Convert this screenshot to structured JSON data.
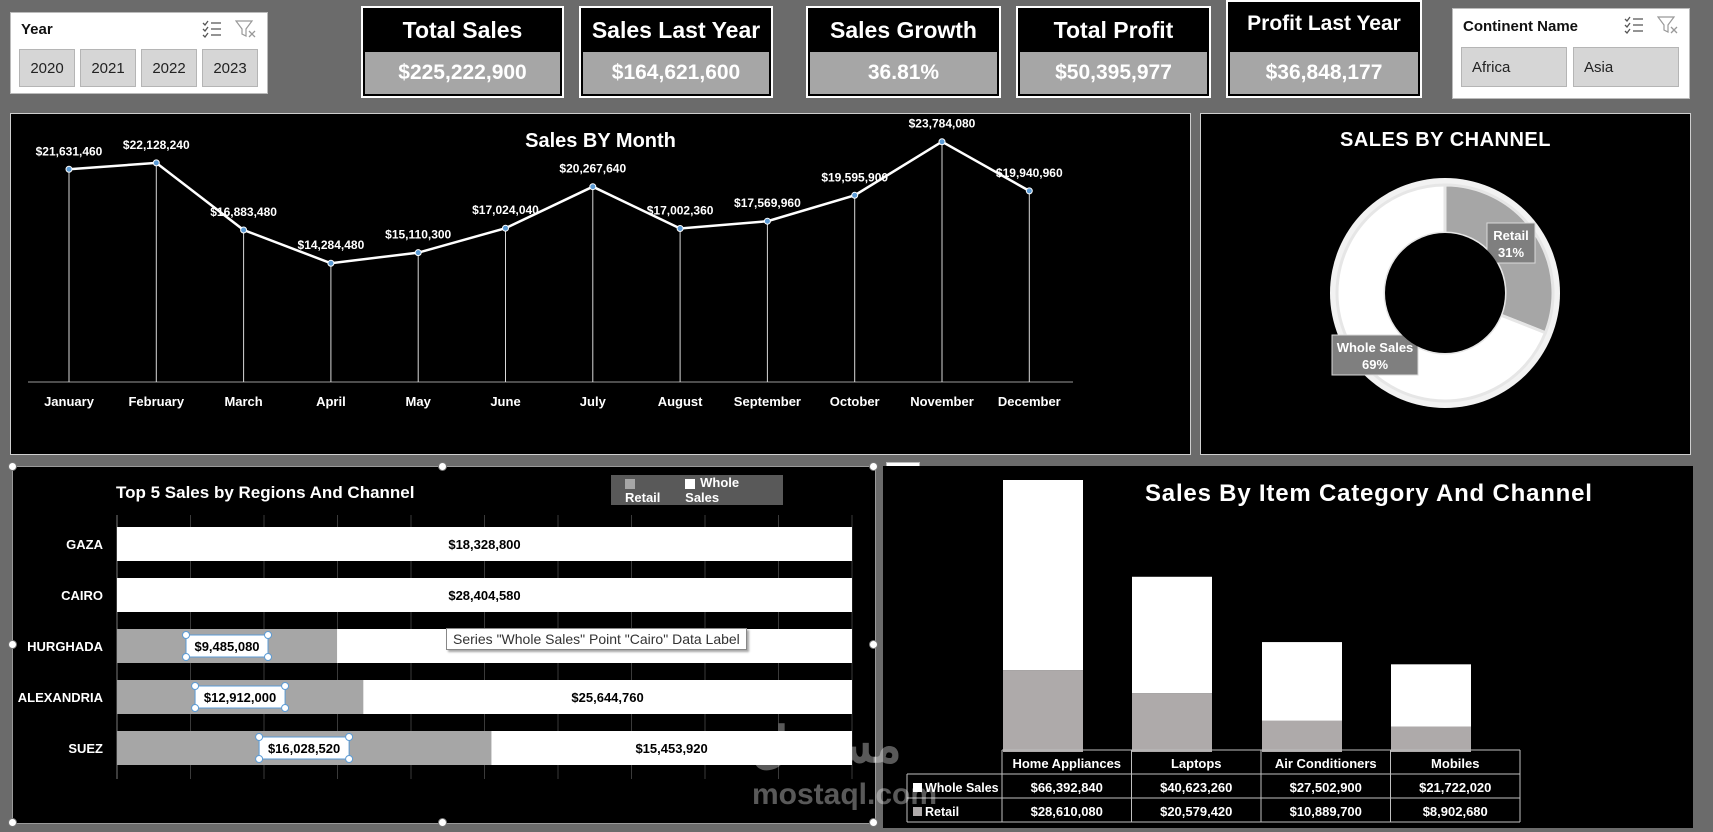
{
  "year_slicer": {
    "title": "Year",
    "items": [
      "2020",
      "2021",
      "2022",
      "2023"
    ]
  },
  "continent_slicer": {
    "title": "Continent Name",
    "items": [
      "Africa",
      "Asia"
    ]
  },
  "kpis": [
    {
      "title": "Total Sales",
      "value": "$225,222,900"
    },
    {
      "title": "Sales Last Year",
      "value": "$164,621,600"
    },
    {
      "title": "Sales Growth",
      "value": "36.81%"
    },
    {
      "title": "Total Profit",
      "value": "$50,395,977"
    },
    {
      "title": "Profit Last Year",
      "value": "$36,848,177"
    }
  ],
  "icons": {
    "multi_select": "multi-select-icon",
    "clear_filter": "clear-filter-icon",
    "chart_elements": "plus-icon",
    "chart_styles": "paintbrush-icon"
  },
  "colors": {
    "background": "#6b6b6b",
    "panel": "#000000",
    "retail": "#a6a6a6",
    "whole_sales": "#ffffff",
    "kpi_value_bg": "#a6a6a6"
  },
  "tooltip": "Series \"Whole Sales\" Point \"Cairo\" Data Label",
  "watermark": {
    "arabic": "مستقل",
    "latin": "mostaql.com"
  },
  "chart_data": [
    {
      "type": "line",
      "title": "Sales BY Month",
      "categories": [
        "January",
        "February",
        "March",
        "April",
        "May",
        "June",
        "July",
        "August",
        "September",
        "October",
        "November",
        "December"
      ],
      "values": [
        21631460,
        22128240,
        16883480,
        14284480,
        15110300,
        17024040,
        20267640,
        17002360,
        17569960,
        19595900,
        23784080,
        19940960
      ],
      "labels": [
        "$21,631,460",
        "$22,128,240",
        "$16,883,480",
        "$14,284,480",
        "$15,110,300",
        "$17,024,040",
        "$20,267,640",
        "$17,002,360",
        "$17,569,960",
        "$19,595,900",
        "$23,784,080",
        "$19,940,960"
      ],
      "ylim": [
        0,
        25000000
      ],
      "grid": false,
      "drop_lines": true
    },
    {
      "type": "pie",
      "title": "SALES BY CHANNEL",
      "slices": [
        {
          "name": "Retail",
          "value": 31,
          "label": "31%"
        },
        {
          "name": "Whole Sales",
          "value": 69,
          "label": "69%"
        }
      ]
    },
    {
      "type": "bar",
      "title": "Top 5 Sales by Regions And Channel",
      "orientation": "horizontal",
      "stacked": true,
      "categories": [
        "GAZA",
        "CAIRO",
        "HURGHADA",
        "ALEXANDRIA",
        "SUEZ"
      ],
      "series": [
        {
          "name": "Retail",
          "values": [
            0,
            0,
            9485080,
            12912000,
            16028520
          ],
          "labels": [
            "",
            "",
            "$9,485,080",
            "$12,912,000",
            "$16,028,520"
          ]
        },
        {
          "name": "Whole Sales",
          "values": [
            18328800,
            28404580,
            22200000,
            25644760,
            15453920
          ],
          "labels": [
            "$18,328,800",
            "$28,404,580",
            "",
            "$25,644,760",
            "$15,453,920"
          ]
        }
      ],
      "legend": [
        "Retail",
        "Whole Sales"
      ],
      "legend_position": "top-right"
    },
    {
      "type": "bar",
      "title": "Sales By Item Category And Channel",
      "stacked": true,
      "categories": [
        "Home Appliances",
        "Laptops",
        "Air Conditioners",
        "Mobiles"
      ],
      "series": [
        {
          "name": "Whole Sales",
          "values": [
            66392840,
            40623260,
            27502900,
            21722020
          ],
          "labels": [
            "$66,392,840",
            "$40,623,260",
            "$27,502,900",
            "$21,722,020"
          ]
        },
        {
          "name": "Retail",
          "values": [
            28610080,
            20579420,
            10889700,
            8902680
          ],
          "labels": [
            "$28,610,080",
            "$20,579,420",
            "$10,889,700",
            "$8,902,680"
          ]
        }
      ],
      "data_table": true
    }
  ]
}
